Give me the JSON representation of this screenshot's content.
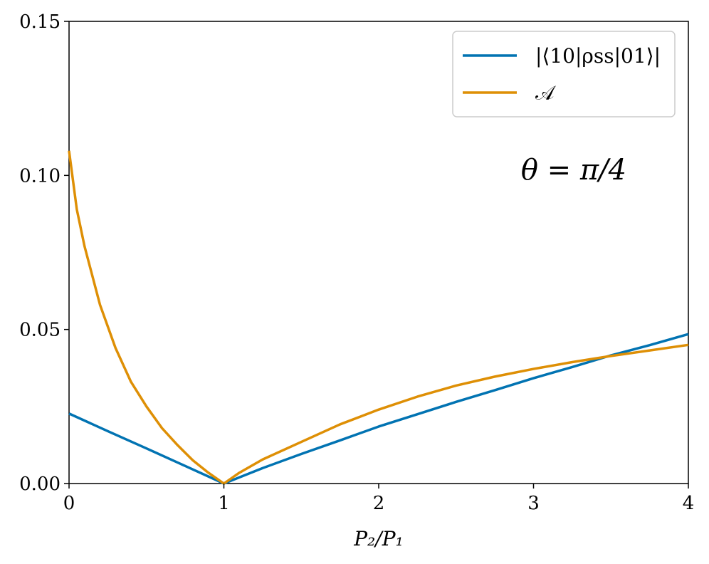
{
  "chart_data": {
    "type": "line",
    "xlabel": "P₂/P₁",
    "ylabel": "",
    "xlim": [
      0,
      4
    ],
    "ylim": [
      0,
      0.15
    ],
    "xticks": [
      "0",
      "1",
      "2",
      "3",
      "4"
    ],
    "yticks": [
      "0.00",
      "0.05",
      "0.10",
      "0.15"
    ],
    "grid": false,
    "legend_position": "top-right",
    "annotation": "θ = π/4",
    "series": [
      {
        "name": "|⟨10|ρss|01⟩|",
        "color": "#0173b2",
        "x": [
          0,
          0.25,
          0.5,
          0.75,
          1.0,
          1.25,
          1.5,
          1.75,
          2.0,
          2.25,
          2.5,
          2.75,
          3.0,
          3.25,
          3.5,
          3.75,
          4.0
        ],
        "y": [
          0.0227,
          0.017,
          0.0114,
          0.0057,
          0.0,
          0.005,
          0.0096,
          0.014,
          0.0185,
          0.0225,
          0.0265,
          0.0303,
          0.0342,
          0.0378,
          0.0416,
          0.0449,
          0.0485
        ]
      },
      {
        "name": "𝒜",
        "color": "#de8f05",
        "x": [
          0,
          0.05,
          0.1,
          0.2,
          0.3,
          0.4,
          0.5,
          0.6,
          0.7,
          0.8,
          0.9,
          1.0,
          1.1,
          1.25,
          1.5,
          1.75,
          2.0,
          2.25,
          2.5,
          2.75,
          3.0,
          3.25,
          3.5,
          3.75,
          4.0
        ],
        "y": [
          0.108,
          0.089,
          0.077,
          0.058,
          0.044,
          0.033,
          0.025,
          0.018,
          0.0125,
          0.0075,
          0.0035,
          0.0,
          0.0035,
          0.0078,
          0.0135,
          0.0192,
          0.024,
          0.0282,
          0.0318,
          0.0347,
          0.0372,
          0.0394,
          0.0414,
          0.0432,
          0.045
        ]
      }
    ]
  }
}
